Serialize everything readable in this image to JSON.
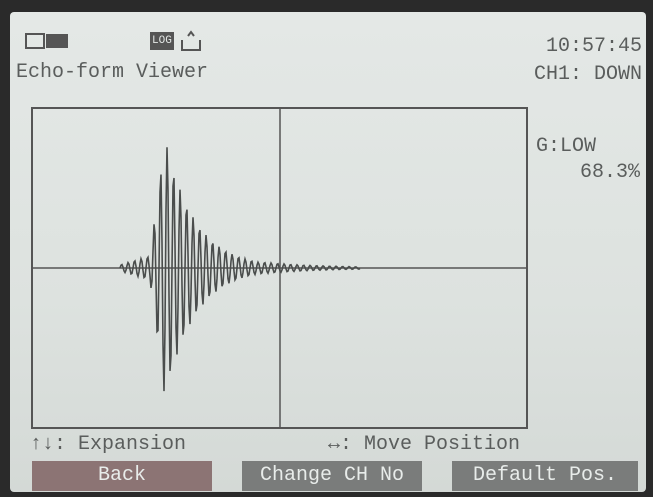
{
  "status": {
    "log_icon": "LOG",
    "time": "10:57:45"
  },
  "header": {
    "title": "Echo-form Viewer",
    "channel": "CH1: DOWN"
  },
  "side": {
    "gain": "G:LOW",
    "percent": "68.3%"
  },
  "hints": {
    "vertical": "↑↓: Expansion",
    "horizontal": "↔: Move Position"
  },
  "buttons": [
    "Back",
    "Change CH No",
    "Default Pos."
  ]
}
